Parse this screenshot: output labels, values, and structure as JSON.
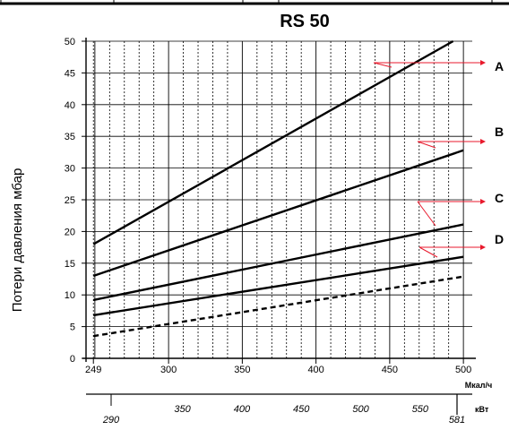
{
  "chart_data": {
    "type": "line",
    "title": "RS 50",
    "ylabel": "Потери давления   мбар",
    "xlabel": "Мкал/ч",
    "xlabel_secondary": "кВт",
    "x_ticks": [
      "249",
      "300",
      "350",
      "400",
      "450",
      "500"
    ],
    "secondary_ticks": [
      "290",
      "350",
      "400",
      "450",
      "500",
      "550",
      "581"
    ],
    "y_ticks": [
      "0",
      "5",
      "10",
      "15",
      "20",
      "25",
      "30",
      "35",
      "40",
      "45",
      "50"
    ],
    "xlim": [
      244,
      506
    ],
    "ylim": [
      0,
      50
    ],
    "secondary_lim": [
      290,
      581
    ],
    "grid": true,
    "series": [
      {
        "name": "A",
        "style": "solid",
        "x": [
          249,
          493
        ],
        "y": [
          18,
          50
        ]
      },
      {
        "name": "B",
        "style": "solid",
        "x": [
          249,
          500
        ],
        "y": [
          13,
          32.8
        ]
      },
      {
        "name": "C",
        "style": "solid",
        "x": [
          249,
          500
        ],
        "y": [
          9.2,
          21.1
        ]
      },
      {
        "name": "D",
        "style": "solid",
        "x": [
          249,
          500
        ],
        "y": [
          6.8,
          16.0
        ]
      },
      {
        "style": "dashed",
        "x": [
          249,
          500
        ],
        "y": [
          3.5,
          12.9
        ]
      }
    ],
    "annotations": [
      "A",
      "B",
      "C",
      "D"
    ]
  },
  "colors": {
    "line": "#000000",
    "arrow": "#e8192c",
    "grid": "#000000"
  }
}
